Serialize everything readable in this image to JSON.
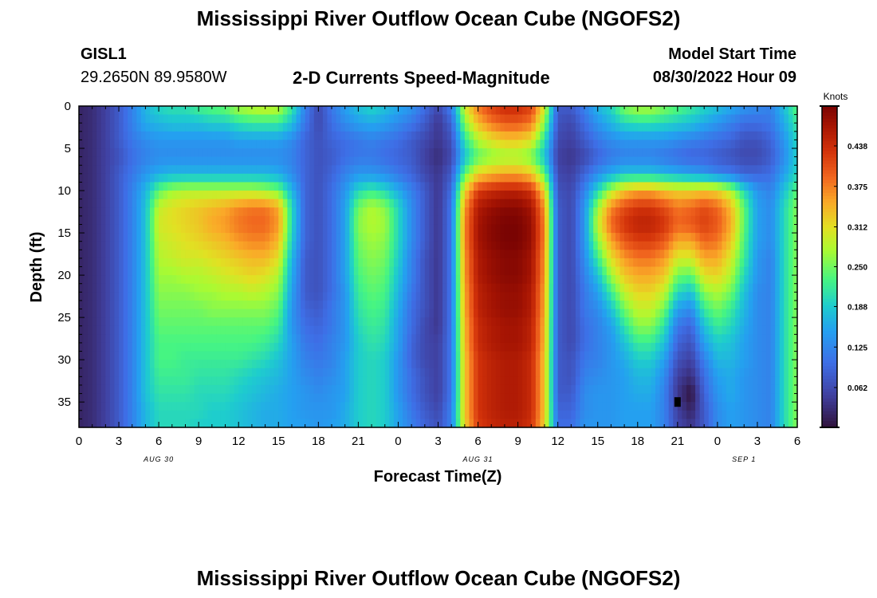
{
  "page": {
    "title_top": "Mississippi River Outflow Ocean Cube (NGOFS2)",
    "title_bottom": "Mississippi River Outflow Ocean Cube (NGOFS2)",
    "station_id": "GISL1",
    "station_coords": "29.2650N  89.9580W",
    "subtitle": "2-D Currents Speed-Magnitude",
    "model_label": "Model Start Time",
    "model_time": "08/30/2022 Hour 09"
  },
  "chart_data": {
    "type": "heatmap",
    "title": "2-D Currents Speed-Magnitude",
    "xlabel": "Forecast Time(Z)",
    "ylabel": "Depth (ft)",
    "x_tick_labels": [
      "0",
      "3",
      "6",
      "9",
      "12",
      "15",
      "18",
      "21",
      "0",
      "3",
      "6",
      "9",
      "12",
      "15",
      "18",
      "21",
      "0",
      "3",
      "6"
    ],
    "x_date_labels": [
      "AUG 30",
      "AUG 31",
      "SEP 1"
    ],
    "x_range_hours": [
      0,
      54
    ],
    "y_tick_labels": [
      "0",
      "5",
      "10",
      "15",
      "20",
      "25",
      "30",
      "35"
    ],
    "y_range_ft": [
      0,
      38
    ],
    "y_inverted": true,
    "colorbar": {
      "title": "Knots",
      "tick_labels": [
        "0.062",
        "0.125",
        "0.188",
        "0.250",
        "0.312",
        "0.375",
        "0.438"
      ],
      "min": 0.0,
      "max": 0.5
    },
    "description_of_field": "Current speed (knots) versus forecast hour (x) and depth (y); values estimated from colors",
    "time_columns_hours": [
      0,
      1,
      2,
      3,
      4,
      5,
      6,
      7,
      8,
      9,
      10,
      11,
      12,
      13,
      14,
      15,
      16,
      17,
      18,
      19,
      20,
      21,
      22,
      23,
      24,
      25,
      26,
      27,
      28,
      29,
      30,
      31,
      32,
      33,
      34,
      35,
      36,
      37,
      38,
      39,
      40,
      41,
      42,
      43,
      44,
      45,
      46,
      47,
      48,
      49,
      50,
      51,
      52,
      53,
      54
    ],
    "depth_rows_ft": [
      0,
      2,
      4,
      6,
      8,
      10,
      12,
      14,
      16,
      18,
      20,
      22,
      24,
      26,
      28,
      30,
      32,
      34,
      36,
      38
    ],
    "values": [
      [
        0.02,
        0.03,
        0.05,
        0.08,
        0.12,
        0.17,
        0.2,
        0.21,
        0.21,
        0.23,
        0.24,
        0.25,
        0.28,
        0.29,
        0.3,
        0.29,
        0.22,
        0.12,
        0.06,
        0.11,
        0.15,
        0.18,
        0.2,
        0.18,
        0.16,
        0.14,
        0.1,
        0.06,
        0.12,
        0.3,
        0.38,
        0.42,
        0.44,
        0.44,
        0.42,
        0.3,
        0.08,
        0.08,
        0.12,
        0.17,
        0.2,
        0.26,
        0.28,
        0.28,
        0.26,
        0.24,
        0.22,
        0.2,
        0.18,
        0.16,
        0.14,
        0.13,
        0.12,
        0.18,
        0.24
      ],
      [
        0.02,
        0.03,
        0.05,
        0.08,
        0.12,
        0.16,
        0.17,
        0.18,
        0.18,
        0.18,
        0.19,
        0.19,
        0.21,
        0.22,
        0.22,
        0.22,
        0.18,
        0.11,
        0.06,
        0.1,
        0.13,
        0.15,
        0.16,
        0.15,
        0.13,
        0.11,
        0.08,
        0.04,
        0.09,
        0.26,
        0.34,
        0.38,
        0.4,
        0.4,
        0.38,
        0.26,
        0.07,
        0.06,
        0.1,
        0.14,
        0.17,
        0.2,
        0.21,
        0.21,
        0.2,
        0.19,
        0.18,
        0.16,
        0.14,
        0.12,
        0.1,
        0.1,
        0.11,
        0.16,
        0.22
      ],
      [
        0.02,
        0.03,
        0.05,
        0.08,
        0.11,
        0.13,
        0.14,
        0.14,
        0.14,
        0.14,
        0.14,
        0.14,
        0.15,
        0.15,
        0.15,
        0.15,
        0.13,
        0.09,
        0.07,
        0.09,
        0.1,
        0.11,
        0.12,
        0.11,
        0.1,
        0.08,
        0.06,
        0.04,
        0.07,
        0.21,
        0.28,
        0.31,
        0.33,
        0.33,
        0.31,
        0.21,
        0.06,
        0.05,
        0.08,
        0.11,
        0.13,
        0.14,
        0.14,
        0.14,
        0.14,
        0.13,
        0.12,
        0.11,
        0.1,
        0.09,
        0.07,
        0.07,
        0.09,
        0.14,
        0.2
      ],
      [
        0.02,
        0.03,
        0.05,
        0.07,
        0.1,
        0.12,
        0.13,
        0.13,
        0.13,
        0.13,
        0.13,
        0.13,
        0.13,
        0.13,
        0.13,
        0.13,
        0.12,
        0.09,
        0.07,
        0.08,
        0.1,
        0.11,
        0.11,
        0.1,
        0.09,
        0.08,
        0.05,
        0.03,
        0.06,
        0.18,
        0.24,
        0.26,
        0.27,
        0.27,
        0.25,
        0.18,
        0.05,
        0.04,
        0.06,
        0.09,
        0.11,
        0.12,
        0.12,
        0.12,
        0.11,
        0.1,
        0.09,
        0.09,
        0.08,
        0.07,
        0.06,
        0.06,
        0.08,
        0.13,
        0.19
      ],
      [
        0.02,
        0.03,
        0.05,
        0.08,
        0.11,
        0.14,
        0.16,
        0.17,
        0.17,
        0.17,
        0.17,
        0.17,
        0.17,
        0.17,
        0.17,
        0.16,
        0.13,
        0.09,
        0.07,
        0.09,
        0.12,
        0.14,
        0.14,
        0.13,
        0.11,
        0.09,
        0.06,
        0.04,
        0.08,
        0.24,
        0.32,
        0.34,
        0.35,
        0.35,
        0.33,
        0.24,
        0.06,
        0.05,
        0.09,
        0.13,
        0.16,
        0.18,
        0.18,
        0.18,
        0.17,
        0.16,
        0.15,
        0.14,
        0.12,
        0.11,
        0.09,
        0.09,
        0.1,
        0.15,
        0.2
      ],
      [
        0.02,
        0.03,
        0.05,
        0.08,
        0.12,
        0.17,
        0.24,
        0.27,
        0.28,
        0.28,
        0.28,
        0.28,
        0.28,
        0.28,
        0.27,
        0.25,
        0.17,
        0.09,
        0.07,
        0.1,
        0.14,
        0.2,
        0.22,
        0.2,
        0.16,
        0.12,
        0.08,
        0.04,
        0.1,
        0.32,
        0.42,
        0.44,
        0.45,
        0.45,
        0.43,
        0.32,
        0.07,
        0.06,
        0.12,
        0.2,
        0.28,
        0.33,
        0.35,
        0.35,
        0.33,
        0.32,
        0.32,
        0.33,
        0.32,
        0.28,
        0.2,
        0.14,
        0.12,
        0.18,
        0.24
      ],
      [
        0.02,
        0.03,
        0.05,
        0.08,
        0.12,
        0.18,
        0.29,
        0.31,
        0.32,
        0.33,
        0.34,
        0.35,
        0.37,
        0.38,
        0.38,
        0.35,
        0.2,
        0.09,
        0.07,
        0.1,
        0.15,
        0.25,
        0.28,
        0.26,
        0.2,
        0.13,
        0.08,
        0.04,
        0.11,
        0.36,
        0.46,
        0.48,
        0.49,
        0.49,
        0.47,
        0.36,
        0.08,
        0.06,
        0.14,
        0.27,
        0.37,
        0.41,
        0.43,
        0.43,
        0.41,
        0.38,
        0.39,
        0.41,
        0.39,
        0.34,
        0.24,
        0.15,
        0.13,
        0.2,
        0.26
      ],
      [
        0.02,
        0.03,
        0.05,
        0.08,
        0.12,
        0.18,
        0.3,
        0.31,
        0.32,
        0.33,
        0.35,
        0.36,
        0.38,
        0.39,
        0.39,
        0.36,
        0.2,
        0.09,
        0.07,
        0.1,
        0.15,
        0.26,
        0.28,
        0.27,
        0.2,
        0.13,
        0.08,
        0.04,
        0.11,
        0.37,
        0.47,
        0.49,
        0.5,
        0.5,
        0.48,
        0.37,
        0.08,
        0.06,
        0.14,
        0.29,
        0.39,
        0.43,
        0.45,
        0.45,
        0.43,
        0.39,
        0.4,
        0.42,
        0.4,
        0.35,
        0.24,
        0.15,
        0.13,
        0.2,
        0.26
      ],
      [
        0.02,
        0.03,
        0.05,
        0.08,
        0.12,
        0.18,
        0.29,
        0.3,
        0.31,
        0.32,
        0.33,
        0.34,
        0.36,
        0.37,
        0.37,
        0.34,
        0.19,
        0.09,
        0.07,
        0.1,
        0.15,
        0.25,
        0.27,
        0.26,
        0.2,
        0.13,
        0.08,
        0.04,
        0.11,
        0.37,
        0.47,
        0.49,
        0.5,
        0.5,
        0.48,
        0.37,
        0.08,
        0.06,
        0.14,
        0.26,
        0.35,
        0.4,
        0.42,
        0.42,
        0.4,
        0.35,
        0.35,
        0.39,
        0.38,
        0.33,
        0.23,
        0.15,
        0.13,
        0.2,
        0.26
      ],
      [
        0.02,
        0.03,
        0.05,
        0.08,
        0.12,
        0.18,
        0.28,
        0.29,
        0.3,
        0.3,
        0.31,
        0.32,
        0.33,
        0.34,
        0.34,
        0.31,
        0.17,
        0.08,
        0.07,
        0.1,
        0.15,
        0.24,
        0.26,
        0.25,
        0.19,
        0.12,
        0.07,
        0.04,
        0.11,
        0.36,
        0.46,
        0.48,
        0.49,
        0.49,
        0.47,
        0.36,
        0.08,
        0.06,
        0.13,
        0.22,
        0.31,
        0.36,
        0.38,
        0.38,
        0.36,
        0.3,
        0.3,
        0.35,
        0.35,
        0.3,
        0.22,
        0.14,
        0.12,
        0.2,
        0.26
      ],
      [
        0.02,
        0.03,
        0.05,
        0.08,
        0.12,
        0.18,
        0.27,
        0.27,
        0.28,
        0.28,
        0.29,
        0.3,
        0.31,
        0.32,
        0.31,
        0.28,
        0.16,
        0.08,
        0.07,
        0.1,
        0.15,
        0.23,
        0.25,
        0.24,
        0.18,
        0.12,
        0.07,
        0.04,
        0.11,
        0.36,
        0.46,
        0.48,
        0.49,
        0.49,
        0.47,
        0.36,
        0.08,
        0.06,
        0.12,
        0.18,
        0.27,
        0.33,
        0.35,
        0.35,
        0.33,
        0.25,
        0.24,
        0.31,
        0.32,
        0.28,
        0.2,
        0.14,
        0.12,
        0.2,
        0.26
      ],
      [
        0.02,
        0.03,
        0.05,
        0.08,
        0.12,
        0.18,
        0.26,
        0.26,
        0.26,
        0.27,
        0.27,
        0.28,
        0.28,
        0.29,
        0.28,
        0.26,
        0.15,
        0.08,
        0.07,
        0.1,
        0.14,
        0.22,
        0.24,
        0.23,
        0.17,
        0.11,
        0.07,
        0.04,
        0.11,
        0.35,
        0.45,
        0.47,
        0.48,
        0.48,
        0.46,
        0.35,
        0.08,
        0.06,
        0.11,
        0.15,
        0.22,
        0.29,
        0.32,
        0.32,
        0.29,
        0.2,
        0.18,
        0.26,
        0.28,
        0.25,
        0.18,
        0.13,
        0.12,
        0.2,
        0.26
      ],
      [
        0.02,
        0.03,
        0.05,
        0.08,
        0.12,
        0.18,
        0.25,
        0.25,
        0.25,
        0.25,
        0.26,
        0.26,
        0.26,
        0.26,
        0.26,
        0.24,
        0.14,
        0.09,
        0.08,
        0.11,
        0.14,
        0.21,
        0.23,
        0.22,
        0.16,
        0.1,
        0.07,
        0.04,
        0.11,
        0.35,
        0.45,
        0.47,
        0.48,
        0.48,
        0.46,
        0.35,
        0.08,
        0.06,
        0.11,
        0.13,
        0.18,
        0.25,
        0.29,
        0.29,
        0.25,
        0.15,
        0.13,
        0.22,
        0.25,
        0.22,
        0.17,
        0.13,
        0.12,
        0.2,
        0.26
      ],
      [
        0.02,
        0.03,
        0.05,
        0.08,
        0.12,
        0.18,
        0.24,
        0.24,
        0.24,
        0.24,
        0.24,
        0.24,
        0.24,
        0.24,
        0.24,
        0.22,
        0.14,
        0.1,
        0.09,
        0.11,
        0.14,
        0.2,
        0.22,
        0.21,
        0.15,
        0.1,
        0.06,
        0.04,
        0.11,
        0.34,
        0.44,
        0.46,
        0.47,
        0.47,
        0.45,
        0.34,
        0.08,
        0.06,
        0.1,
        0.12,
        0.15,
        0.21,
        0.26,
        0.26,
        0.21,
        0.11,
        0.09,
        0.18,
        0.22,
        0.2,
        0.16,
        0.13,
        0.12,
        0.2,
        0.26
      ],
      [
        0.02,
        0.03,
        0.05,
        0.08,
        0.12,
        0.18,
        0.23,
        0.23,
        0.23,
        0.23,
        0.23,
        0.23,
        0.23,
        0.23,
        0.22,
        0.2,
        0.15,
        0.11,
        0.1,
        0.12,
        0.14,
        0.19,
        0.21,
        0.2,
        0.15,
        0.09,
        0.06,
        0.05,
        0.11,
        0.34,
        0.44,
        0.46,
        0.47,
        0.47,
        0.45,
        0.34,
        0.08,
        0.06,
        0.1,
        0.12,
        0.14,
        0.18,
        0.22,
        0.22,
        0.18,
        0.09,
        0.07,
        0.15,
        0.19,
        0.18,
        0.15,
        0.13,
        0.12,
        0.2,
        0.26
      ],
      [
        0.02,
        0.03,
        0.05,
        0.08,
        0.12,
        0.18,
        0.23,
        0.23,
        0.22,
        0.22,
        0.22,
        0.22,
        0.22,
        0.21,
        0.2,
        0.18,
        0.15,
        0.12,
        0.11,
        0.12,
        0.15,
        0.19,
        0.2,
        0.19,
        0.14,
        0.09,
        0.06,
        0.05,
        0.11,
        0.33,
        0.43,
        0.45,
        0.46,
        0.46,
        0.44,
        0.33,
        0.08,
        0.07,
        0.11,
        0.12,
        0.14,
        0.16,
        0.19,
        0.19,
        0.15,
        0.07,
        0.05,
        0.12,
        0.17,
        0.17,
        0.15,
        0.13,
        0.12,
        0.2,
        0.26
      ],
      [
        0.02,
        0.03,
        0.05,
        0.08,
        0.12,
        0.18,
        0.22,
        0.22,
        0.22,
        0.21,
        0.21,
        0.21,
        0.2,
        0.19,
        0.18,
        0.17,
        0.15,
        0.13,
        0.12,
        0.13,
        0.15,
        0.19,
        0.2,
        0.19,
        0.14,
        0.1,
        0.07,
        0.05,
        0.11,
        0.33,
        0.43,
        0.45,
        0.46,
        0.46,
        0.44,
        0.33,
        0.08,
        0.07,
        0.12,
        0.13,
        0.14,
        0.15,
        0.17,
        0.17,
        0.13,
        0.05,
        0.03,
        0.1,
        0.15,
        0.16,
        0.14,
        0.13,
        0.12,
        0.2,
        0.26
      ],
      [
        0.02,
        0.03,
        0.05,
        0.08,
        0.12,
        0.18,
        0.21,
        0.21,
        0.21,
        0.2,
        0.2,
        0.2,
        0.19,
        0.18,
        0.17,
        0.16,
        0.15,
        0.14,
        0.13,
        0.14,
        0.15,
        0.19,
        0.2,
        0.19,
        0.14,
        0.1,
        0.07,
        0.05,
        0.11,
        0.33,
        0.43,
        0.45,
        0.46,
        0.46,
        0.44,
        0.33,
        0.08,
        0.08,
        0.13,
        0.14,
        0.14,
        0.15,
        0.16,
        0.16,
        0.12,
        0.04,
        0.0,
        0.09,
        0.14,
        0.16,
        0.14,
        0.13,
        0.12,
        0.2,
        0.26
      ],
      [
        0.02,
        0.03,
        0.05,
        0.08,
        0.12,
        0.17,
        0.2,
        0.2,
        0.2,
        0.2,
        0.19,
        0.19,
        0.18,
        0.17,
        0.16,
        0.16,
        0.15,
        0.14,
        0.14,
        0.14,
        0.16,
        0.19,
        0.2,
        0.19,
        0.15,
        0.11,
        0.08,
        0.06,
        0.12,
        0.33,
        0.43,
        0.45,
        0.46,
        0.46,
        0.44,
        0.33,
        0.09,
        0.09,
        0.13,
        0.14,
        0.14,
        0.15,
        0.15,
        0.15,
        0.12,
        0.05,
        0.02,
        0.08,
        0.13,
        0.15,
        0.14,
        0.13,
        0.12,
        0.2,
        0.26
      ],
      [
        0.02,
        0.03,
        0.05,
        0.08,
        0.12,
        0.17,
        0.2,
        0.2,
        0.2,
        0.19,
        0.19,
        0.19,
        0.18,
        0.17,
        0.16,
        0.16,
        0.15,
        0.15,
        0.14,
        0.15,
        0.16,
        0.19,
        0.2,
        0.19,
        0.15,
        0.12,
        0.09,
        0.07,
        0.12,
        0.32,
        0.42,
        0.44,
        0.45,
        0.45,
        0.43,
        0.32,
        0.1,
        0.1,
        0.14,
        0.14,
        0.14,
        0.15,
        0.15,
        0.15,
        0.12,
        0.06,
        0.04,
        0.08,
        0.13,
        0.15,
        0.14,
        0.13,
        0.12,
        0.2,
        0.26
      ]
    ],
    "marker": {
      "hour": 45,
      "depth_ft": 35,
      "label": ""
    }
  }
}
